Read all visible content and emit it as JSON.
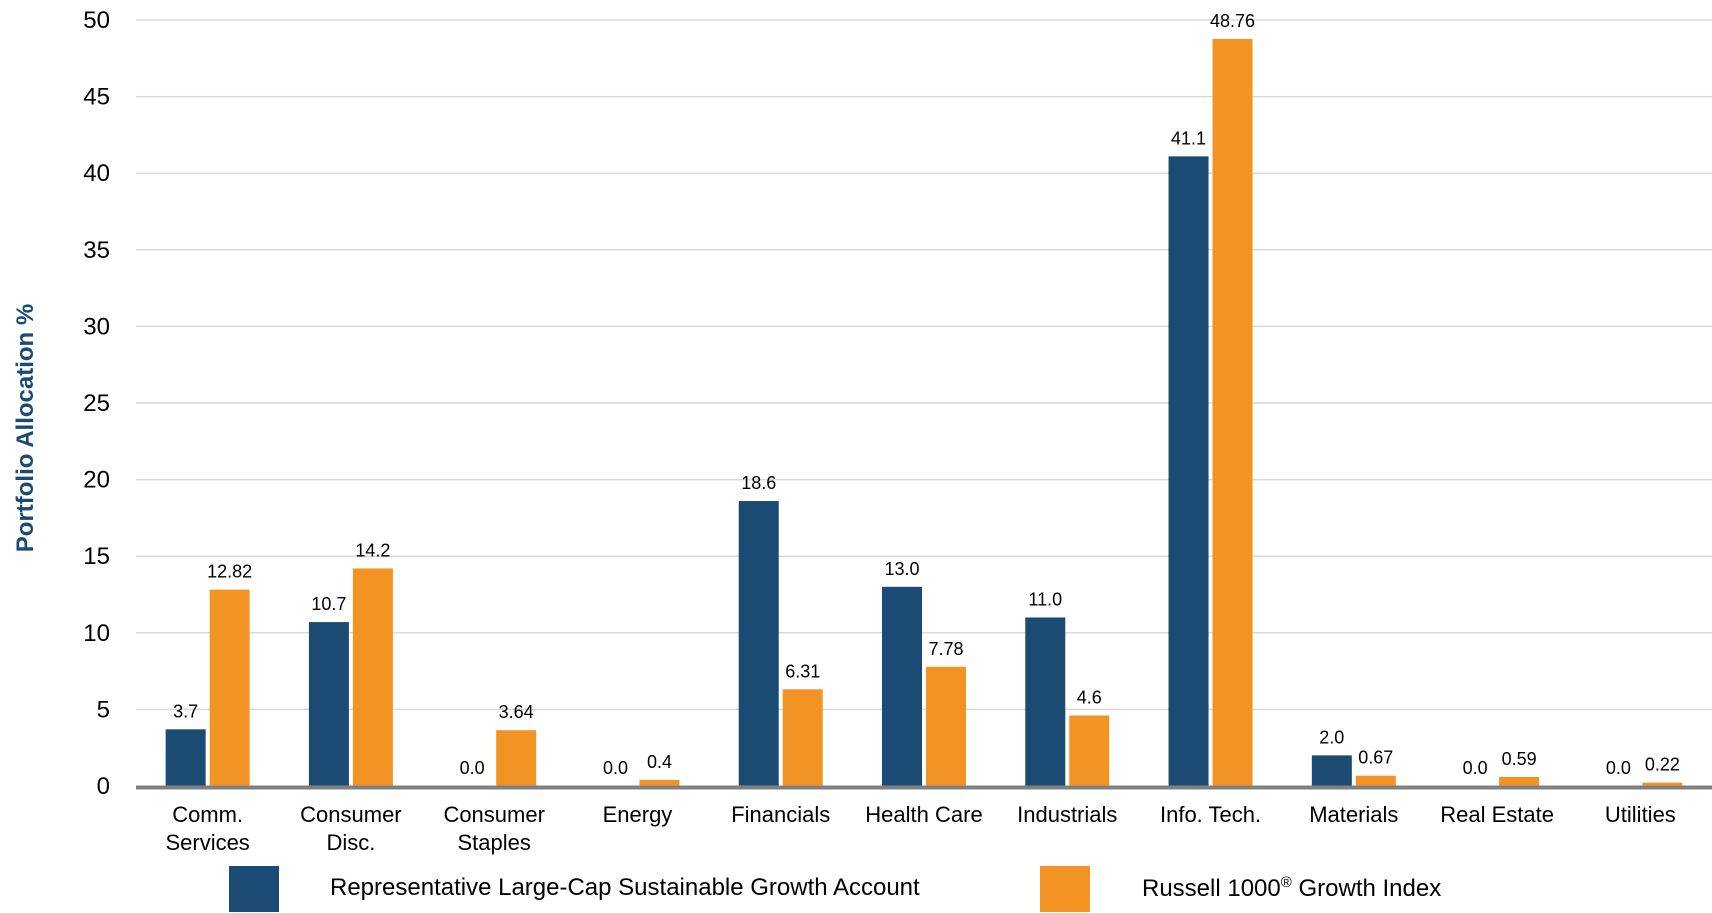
{
  "colors": {
    "account": "#1B4B73",
    "index": "#F39323",
    "grid": "#D9D9D9",
    "axis": "#808080"
  },
  "chart_data": {
    "type": "bar",
    "ylabel": "Portfolio Allocation %",
    "ylim": [
      0,
      50
    ],
    "yticks": [
      "0",
      "5",
      "10",
      "15",
      "20",
      "25",
      "30",
      "35",
      "40",
      "45",
      "50"
    ],
    "grid": true,
    "legend_position": "bottom",
    "categories": [
      [
        "Comm.",
        "Services"
      ],
      [
        "Consumer",
        "Disc."
      ],
      [
        "Consumer",
        "Staples"
      ],
      [
        "Energy"
      ],
      [
        "Financials"
      ],
      [
        "Health Care"
      ],
      [
        "Industrials"
      ],
      [
        "Info. Tech."
      ],
      [
        "Materials"
      ],
      [
        "Real Estate"
      ],
      [
        "Utilities"
      ]
    ],
    "series": [
      {
        "name": "Representative Large-Cap Sustainable Growth Account",
        "values": [
          3.7,
          10.7,
          0.0,
          0.0,
          18.6,
          13.0,
          11.0,
          41.1,
          2.0,
          0.0,
          0.0
        ],
        "labels": [
          "3.7",
          "10.7",
          "0.0",
          "0.0",
          "18.6",
          "13.0",
          "11.0",
          "41.1",
          "2.0",
          "0.0",
          "0.0"
        ]
      },
      {
        "name": "Russell 1000® Growth Index",
        "values": [
          12.82,
          14.2,
          3.64,
          0.4,
          6.31,
          7.78,
          4.6,
          48.76,
          0.67,
          0.59,
          0.22
        ],
        "labels": [
          "12.82",
          "14.2",
          "3.64",
          "0.4",
          "6.31",
          "7.78",
          "4.6",
          "48.76",
          "0.67",
          "0.59",
          "0.22"
        ]
      }
    ]
  },
  "legend": {
    "account_label": "Representative Large-Cap Sustainable Growth Account",
    "index_label_pre": "Russell 1000",
    "index_label_sup": "®",
    "index_label_post": " Growth Index"
  }
}
